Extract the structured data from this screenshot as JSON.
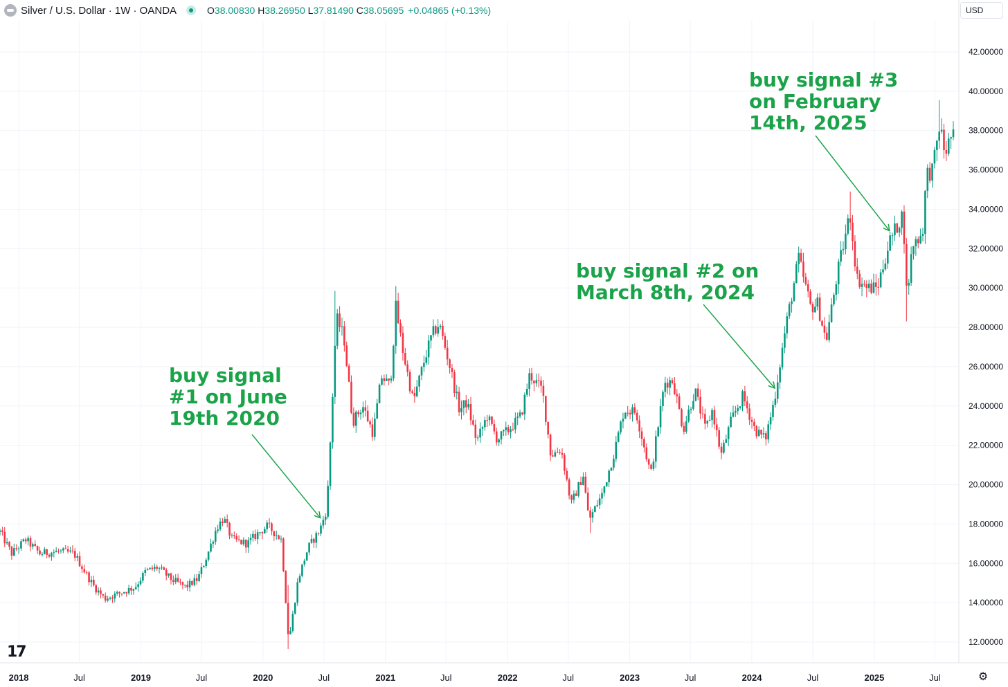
{
  "header": {
    "symbol": "Silver / U.S. Dollar · 1W · OANDA",
    "open_label": "O",
    "open": "38.00830",
    "high_label": "H",
    "high": "38.26950",
    "low_label": "L",
    "low": "37.81490",
    "close_label": "C",
    "close": "38.05695",
    "change": "+0.04865 (+0.13%)"
  },
  "currency": "USD",
  "logo_text": "17",
  "settings_icon": "gear-icon",
  "colors": {
    "up": "#089981",
    "down": "#f23645",
    "annotation": "#1ba34a",
    "grid": "#f0f3fa"
  },
  "annotations": [
    {
      "text": "buy signal\n#1 on June\n19th 2020",
      "target_date": "2020-06-19"
    },
    {
      "text": "buy signal #2 on\nMarch 8th, 2024",
      "target_date": "2024-03-08"
    },
    {
      "text": "buy signal #3\non February\n14th, 2025",
      "target_date": "2025-02-14"
    }
  ],
  "chart_data": {
    "type": "candlestick",
    "interval": "1W",
    "x_axis": {
      "range": [
        "2017-11-06",
        "2025-08-25"
      ],
      "ticks": [
        {
          "date": "2018-01-01",
          "label": "2018"
        },
        {
          "date": "2018-07-01",
          "label": "Jul"
        },
        {
          "date": "2019-01-01",
          "label": "2019"
        },
        {
          "date": "2019-07-01",
          "label": "Jul"
        },
        {
          "date": "2020-01-01",
          "label": "2020"
        },
        {
          "date": "2020-07-01",
          "label": "Jul"
        },
        {
          "date": "2021-01-01",
          "label": "2021"
        },
        {
          "date": "2021-07-01",
          "label": "Jul"
        },
        {
          "date": "2022-01-01",
          "label": "2022"
        },
        {
          "date": "2022-07-01",
          "label": "Jul"
        },
        {
          "date": "2023-01-01",
          "label": "2023"
        },
        {
          "date": "2023-07-01",
          "label": "Jul"
        },
        {
          "date": "2024-01-01",
          "label": "2024"
        },
        {
          "date": "2024-07-01",
          "label": "Jul"
        },
        {
          "date": "2025-01-01",
          "label": "2025"
        },
        {
          "date": "2025-07-01",
          "label": "Jul"
        }
      ]
    },
    "y_axis": {
      "position": "right",
      "range": [
        11,
        43
      ],
      "ticks": [
        "12.00000",
        "14.00000",
        "16.00000",
        "18.00000",
        "20.00000",
        "22.00000",
        "24.00000",
        "26.00000",
        "28.00000",
        "30.00000",
        "32.00000",
        "34.00000",
        "36.00000",
        "38.00000",
        "40.00000",
        "42.00000"
      ],
      "tick_values": [
        12,
        14,
        16,
        18,
        20,
        22,
        24,
        26,
        28,
        30,
        32,
        34,
        36,
        38,
        40,
        42
      ]
    },
    "grid": true,
    "close_path": [
      [
        "2017-11-06",
        17.6
      ],
      [
        "2017-12-11",
        16.5
      ],
      [
        "2018-01-22",
        17.2
      ],
      [
        "2018-03-05",
        16.5
      ],
      [
        "2018-05-01",
        16.6
      ],
      [
        "2018-06-15",
        16.5
      ],
      [
        "2018-07-20",
        15.5
      ],
      [
        "2018-08-15",
        14.8
      ],
      [
        "2018-09-15",
        14.2
      ],
      [
        "2018-11-01",
        14.5
      ],
      [
        "2018-12-15",
        14.8
      ],
      [
        "2019-01-15",
        15.6
      ],
      [
        "2019-02-20",
        15.8
      ],
      [
        "2019-04-01",
        15.2
      ],
      [
        "2019-05-15",
        14.8
      ],
      [
        "2019-06-20",
        15.2
      ],
      [
        "2019-07-20",
        16.5
      ],
      [
        "2019-08-15",
        17.8
      ],
      [
        "2019-09-05",
        18.3
      ],
      [
        "2019-10-01",
        17.2
      ],
      [
        "2019-11-15",
        17.0
      ],
      [
        "2019-12-15",
        17.5
      ],
      [
        "2020-01-15",
        17.9
      ],
      [
        "2020-02-25",
        17.2
      ],
      [
        "2020-03-18",
        12.0
      ],
      [
        "2020-04-15",
        15.2
      ],
      [
        "2020-05-15",
        16.8
      ],
      [
        "2020-06-19",
        17.7
      ],
      [
        "2020-07-10",
        18.8
      ],
      [
        "2020-07-24",
        23.5
      ],
      [
        "2020-08-07",
        28.5
      ],
      [
        "2020-08-30",
        27.5
      ],
      [
        "2020-09-25",
        23.2
      ],
      [
        "2020-10-25",
        24.0
      ],
      [
        "2020-11-25",
        22.6
      ],
      [
        "2020-12-20",
        25.5
      ],
      [
        "2021-01-15",
        25.0
      ],
      [
        "2021-02-01",
        29.0
      ],
      [
        "2021-02-20",
        27.0
      ],
      [
        "2021-03-25",
        24.2
      ],
      [
        "2021-04-30",
        26.5
      ],
      [
        "2021-05-20",
        27.6
      ],
      [
        "2021-06-10",
        28.2
      ],
      [
        "2021-07-10",
        26.2
      ],
      [
        "2021-08-10",
        23.8
      ],
      [
        "2021-09-01",
        24.2
      ],
      [
        "2021-10-01",
        22.2
      ],
      [
        "2021-11-01",
        23.5
      ],
      [
        "2021-12-01",
        22.3
      ],
      [
        "2022-01-05",
        22.8
      ],
      [
        "2022-02-10",
        23.5
      ],
      [
        "2022-03-08",
        25.6
      ],
      [
        "2022-04-15",
        24.8
      ],
      [
        "2022-05-10",
        21.5
      ],
      [
        "2022-06-10",
        21.8
      ],
      [
        "2022-07-10",
        19.0
      ],
      [
        "2022-08-15",
        20.5
      ],
      [
        "2022-09-01",
        18.2
      ],
      [
        "2022-10-10",
        19.5
      ],
      [
        "2022-11-15",
        21.6
      ],
      [
        "2022-12-15",
        23.8
      ],
      [
        "2023-01-20",
        23.7
      ],
      [
        "2023-03-05",
        20.5
      ],
      [
        "2023-04-15",
        25.2
      ],
      [
        "2023-05-10",
        25.3
      ],
      [
        "2023-06-10",
        22.8
      ],
      [
        "2023-07-15",
        24.8
      ],
      [
        "2023-08-15",
        22.8
      ],
      [
        "2023-09-05",
        23.8
      ],
      [
        "2023-10-01",
        21.5
      ],
      [
        "2023-11-01",
        23.3
      ],
      [
        "2023-12-05",
        24.5
      ],
      [
        "2024-01-10",
        22.8
      ],
      [
        "2024-02-10",
        22.3
      ],
      [
        "2024-03-08",
        24.3
      ],
      [
        "2024-04-10",
        27.9
      ],
      [
        "2024-05-20",
        31.5
      ],
      [
        "2024-06-25",
        29.0
      ],
      [
        "2024-07-15",
        29.2
      ],
      [
        "2024-08-10",
        27.3
      ],
      [
        "2024-09-10",
        30.5
      ],
      [
        "2024-10-20",
        33.8
      ],
      [
        "2024-11-10",
        30.5
      ],
      [
        "2024-12-10",
        30.0
      ],
      [
        "2025-01-10",
        30.0
      ],
      [
        "2025-02-14",
        32.3
      ],
      [
        "2025-03-28",
        33.8
      ],
      [
        "2025-04-08",
        29.5
      ],
      [
        "2025-04-25",
        32.2
      ],
      [
        "2025-05-25",
        32.8
      ],
      [
        "2025-06-06",
        35.8
      ],
      [
        "2025-06-25",
        36.0
      ],
      [
        "2025-07-15",
        38.3
      ],
      [
        "2025-07-31",
        36.8
      ],
      [
        "2025-08-25",
        38.06
      ]
    ],
    "highlights": [
      {
        "date": "2020-03-16",
        "low": 11.65,
        "high": 14.9
      },
      {
        "date": "2020-08-03",
        "high": 29.85
      },
      {
        "date": "2021-02-01",
        "high": 30.1
      },
      {
        "date": "2022-09-05",
        "low": 17.55
      },
      {
        "date": "2024-10-21",
        "high": 34.9
      },
      {
        "date": "2025-04-07",
        "low": 28.3
      },
      {
        "date": "2025-07-14",
        "high": 39.55
      }
    ]
  }
}
